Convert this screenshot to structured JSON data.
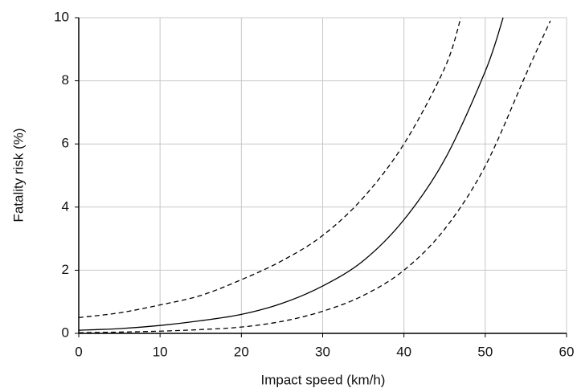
{
  "chart_data": {
    "type": "line",
    "x_label": "Impact speed (km/h)",
    "y_label": "Fatality risk (%)",
    "xlim": [
      0,
      60
    ],
    "xticks": [
      0,
      10,
      20,
      30,
      40,
      50,
      60
    ],
    "ylim": [
      0,
      10
    ],
    "yticks": [
      0,
      2,
      4,
      6,
      8,
      10
    ],
    "grid": true,
    "series": [
      {
        "color": "#000000",
        "style": "dashed",
        "x": [
          0,
          5,
          10,
          15,
          20,
          25,
          30,
          35,
          40,
          45,
          47
        ],
        "values": [
          0.5,
          0.65,
          0.9,
          1.2,
          1.7,
          2.3,
          3.1,
          4.3,
          6.0,
          8.4,
          10
        ]
      },
      {
        "color": "#000000",
        "style": "solid",
        "x": [
          0,
          5,
          10,
          15,
          20,
          25,
          30,
          35,
          40,
          45,
          50,
          52.2
        ],
        "values": [
          0.1,
          0.15,
          0.25,
          0.4,
          0.6,
          0.95,
          1.5,
          2.3,
          3.6,
          5.5,
          8.3,
          10
        ]
      },
      {
        "color": "#000000",
        "style": "dashed",
        "x": [
          0,
          5,
          10,
          15,
          20,
          25,
          30,
          35,
          40,
          45,
          50,
          55,
          58
        ],
        "values": [
          0.02,
          0.04,
          0.07,
          0.12,
          0.2,
          0.38,
          0.7,
          1.2,
          2.0,
          3.3,
          5.3,
          8.2,
          9.9
        ]
      }
    ]
  }
}
